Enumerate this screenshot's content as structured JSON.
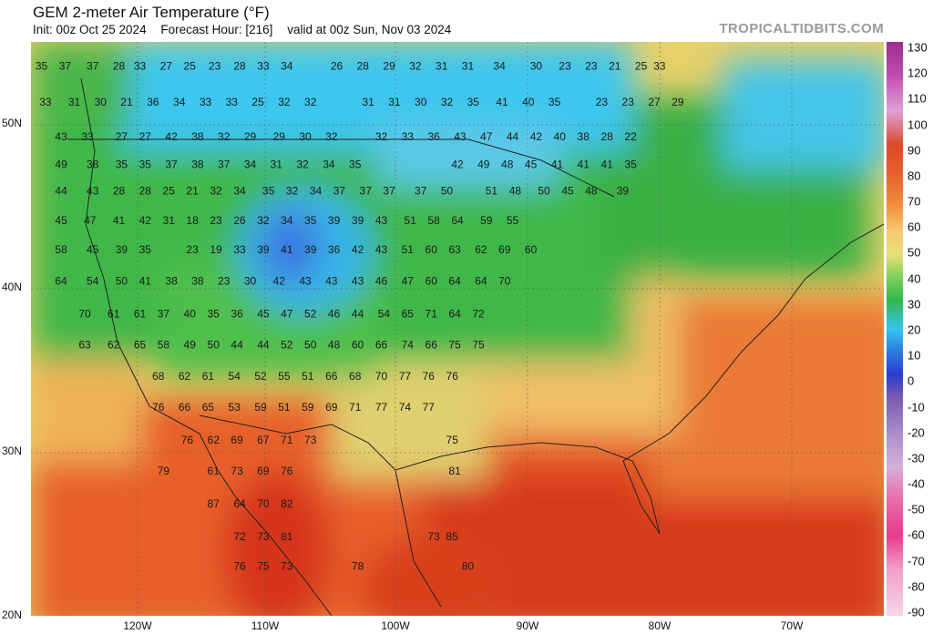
{
  "header": {
    "title": "GEM 2-meter Air Temperature (°F)",
    "init": "Init: 00z Oct 25 2024",
    "forecast_hour": "Forecast Hour: [216]",
    "valid": "valid at 00z Sun, Nov 03 2024",
    "brand": "TROPICALTIDBITS.COM"
  },
  "axes": {
    "lat_labels": [
      "50N",
      "40N",
      "30N",
      "20N"
    ],
    "lon_labels": [
      "120W",
      "110W",
      "100W",
      "90W",
      "80W",
      "70W"
    ]
  },
  "colorbar": {
    "ticks": [
      "130",
      "120",
      "110",
      "100",
      "90",
      "80",
      "70",
      "60",
      "50",
      "40",
      "30",
      "20",
      "10",
      "0",
      "-10",
      "-20",
      "-30",
      "-40",
      "-50",
      "-60",
      "-70",
      "-80",
      "-90"
    ],
    "colors": {
      "cold": "#37c4f0",
      "cool": "#2fb84a",
      "mild": "#f2df83",
      "warm": "#f08a3a",
      "hot": "#db3b1f"
    }
  },
  "temps": [
    {
      "v": "35",
      "lon": -126.5,
      "lat": 53.5
    },
    {
      "v": "37",
      "lon": -124.7,
      "lat": 53.5
    },
    {
      "v": "37",
      "lon": -122.6,
      "lat": 53.5
    },
    {
      "v": "28",
      "lon": -120.6,
      "lat": 53.5
    },
    {
      "v": "33",
      "lon": -119.0,
      "lat": 53.5
    },
    {
      "v": "27",
      "lon": -117.0,
      "lat": 53.5
    },
    {
      "v": "25",
      "lon": -115.2,
      "lat": 53.5
    },
    {
      "v": "23",
      "lon": -113.3,
      "lat": 53.5
    },
    {
      "v": "28",
      "lon": -111.4,
      "lat": 53.5
    },
    {
      "v": "33",
      "lon": -109.6,
      "lat": 53.5
    },
    {
      "v": "34",
      "lon": -107.8,
      "lat": 53.5
    },
    {
      "v": "26",
      "lon": -104.0,
      "lat": 53.5
    },
    {
      "v": "28",
      "lon": -102.0,
      "lat": 53.5
    },
    {
      "v": "29",
      "lon": -100.0,
      "lat": 53.5
    },
    {
      "v": "32",
      "lon": -98.0,
      "lat": 53.5
    },
    {
      "v": "31",
      "lon": -96.0,
      "lat": 53.5
    },
    {
      "v": "31",
      "lon": -94.0,
      "lat": 53.5
    },
    {
      "v": "34",
      "lon": -91.6,
      "lat": 53.5
    },
    {
      "v": "30",
      "lon": -88.8,
      "lat": 53.5
    },
    {
      "v": "23",
      "lon": -86.6,
      "lat": 53.5
    },
    {
      "v": "23",
      "lon": -84.6,
      "lat": 53.5
    },
    {
      "v": "21",
      "lon": -82.8,
      "lat": 53.5
    },
    {
      "v": "25",
      "lon": -80.8,
      "lat": 53.5
    },
    {
      "v": "33",
      "lon": -79.4,
      "lat": 53.5
    },
    {
      "v": "33",
      "lon": -126.2,
      "lat": 51.3
    },
    {
      "v": "31",
      "lon": -124.0,
      "lat": 51.3
    },
    {
      "v": "30",
      "lon": -122.0,
      "lat": 51.3
    },
    {
      "v": "21",
      "lon": -120.0,
      "lat": 51.3
    },
    {
      "v": "36",
      "lon": -118.0,
      "lat": 51.3
    },
    {
      "v": "34",
      "lon": -116.0,
      "lat": 51.3
    },
    {
      "v": "33",
      "lon": -114.0,
      "lat": 51.3
    },
    {
      "v": "33",
      "lon": -112.0,
      "lat": 51.3
    },
    {
      "v": "25",
      "lon": -110.0,
      "lat": 51.3
    },
    {
      "v": "32",
      "lon": -108.0,
      "lat": 51.3
    },
    {
      "v": "32",
      "lon": -106.0,
      "lat": 51.3
    },
    {
      "v": "31",
      "lon": -101.6,
      "lat": 51.3
    },
    {
      "v": "31",
      "lon": -99.6,
      "lat": 51.3
    },
    {
      "v": "30",
      "lon": -97.6,
      "lat": 51.3
    },
    {
      "v": "32",
      "lon": -95.6,
      "lat": 51.3
    },
    {
      "v": "35",
      "lon": -93.6,
      "lat": 51.3
    },
    {
      "v": "41",
      "lon": -91.4,
      "lat": 51.3
    },
    {
      "v": "40",
      "lon": -89.4,
      "lat": 51.3
    },
    {
      "v": "35",
      "lon": -87.4,
      "lat": 51.3
    },
    {
      "v": "23",
      "lon": -83.8,
      "lat": 51.3
    },
    {
      "v": "23",
      "lon": -81.8,
      "lat": 51.3
    },
    {
      "v": "27",
      "lon": -79.8,
      "lat": 51.3
    },
    {
      "v": "29",
      "lon": -78.0,
      "lat": 51.3
    },
    {
      "v": "43",
      "lon": -125.0,
      "lat": 49.2
    },
    {
      "v": "33",
      "lon": -123.0,
      "lat": 49.2
    },
    {
      "v": "27",
      "lon": -120.4,
      "lat": 49.2
    },
    {
      "v": "27",
      "lon": -118.6,
      "lat": 49.2
    },
    {
      "v": "42",
      "lon": -116.6,
      "lat": 49.2
    },
    {
      "v": "38",
      "lon": -114.6,
      "lat": 49.2
    },
    {
      "v": "32",
      "lon": -112.6,
      "lat": 49.2
    },
    {
      "v": "29",
      "lon": -110.6,
      "lat": 49.2
    },
    {
      "v": "29",
      "lon": -108.4,
      "lat": 49.2
    },
    {
      "v": "30",
      "lon": -106.4,
      "lat": 49.2
    },
    {
      "v": "32",
      "lon": -104.4,
      "lat": 49.2
    },
    {
      "v": "32",
      "lon": -100.6,
      "lat": 49.2
    },
    {
      "v": "33",
      "lon": -98.6,
      "lat": 49.2
    },
    {
      "v": "36",
      "lon": -96.6,
      "lat": 49.2
    },
    {
      "v": "43",
      "lon": -94.6,
      "lat": 49.2
    },
    {
      "v": "47",
      "lon": -92.6,
      "lat": 49.2
    },
    {
      "v": "44",
      "lon": -90.6,
      "lat": 49.2
    },
    {
      "v": "42",
      "lon": -88.8,
      "lat": 49.2
    },
    {
      "v": "40",
      "lon": -87.0,
      "lat": 49.2
    },
    {
      "v": "38",
      "lon": -85.2,
      "lat": 49.2
    },
    {
      "v": "28",
      "lon": -83.4,
      "lat": 49.2
    },
    {
      "v": "22",
      "lon": -81.6,
      "lat": 49.2
    },
    {
      "v": "49",
      "lon": -125.0,
      "lat": 47.5
    },
    {
      "v": "38",
      "lon": -122.6,
      "lat": 47.5
    },
    {
      "v": "35",
      "lon": -120.4,
      "lat": 47.5
    },
    {
      "v": "35",
      "lon": -118.6,
      "lat": 47.5
    },
    {
      "v": "37",
      "lon": -116.6,
      "lat": 47.5
    },
    {
      "v": "38",
      "lon": -114.6,
      "lat": 47.5
    },
    {
      "v": "37",
      "lon": -112.6,
      "lat": 47.5
    },
    {
      "v": "34",
      "lon": -110.6,
      "lat": 47.5
    },
    {
      "v": "31",
      "lon": -108.6,
      "lat": 47.5
    },
    {
      "v": "32",
      "lon": -106.6,
      "lat": 47.5
    },
    {
      "v": "34",
      "lon": -104.6,
      "lat": 47.5
    },
    {
      "v": "35",
      "lon": -102.6,
      "lat": 47.5
    },
    {
      "v": "42",
      "lon": -94.8,
      "lat": 47.5
    },
    {
      "v": "49",
      "lon": -92.8,
      "lat": 47.5
    },
    {
      "v": "48",
      "lon": -91.0,
      "lat": 47.5
    },
    {
      "v": "45",
      "lon": -89.2,
      "lat": 47.5
    },
    {
      "v": "41",
      "lon": -87.2,
      "lat": 47.5
    },
    {
      "v": "41",
      "lon": -85.2,
      "lat": 47.5
    },
    {
      "v": "41",
      "lon": -83.4,
      "lat": 47.5
    },
    {
      "v": "35",
      "lon": -81.6,
      "lat": 47.5
    },
    {
      "v": "44",
      "lon": -125.0,
      "lat": 45.9
    },
    {
      "v": "43",
      "lon": -122.6,
      "lat": 45.9
    },
    {
      "v": "28",
      "lon": -120.6,
      "lat": 45.9
    },
    {
      "v": "28",
      "lon": -118.6,
      "lat": 45.9
    },
    {
      "v": "25",
      "lon": -116.8,
      "lat": 45.9
    },
    {
      "v": "21",
      "lon": -115.0,
      "lat": 45.9
    },
    {
      "v": "32",
      "lon": -113.2,
      "lat": 45.9
    },
    {
      "v": "34",
      "lon": -111.4,
      "lat": 45.9
    },
    {
      "v": "35",
      "lon": -109.2,
      "lat": 45.9
    },
    {
      "v": "32",
      "lon": -107.4,
      "lat": 45.9
    },
    {
      "v": "34",
      "lon": -105.6,
      "lat": 45.9
    },
    {
      "v": "37",
      "lon": -103.8,
      "lat": 45.9
    },
    {
      "v": "37",
      "lon": -101.8,
      "lat": 45.9
    },
    {
      "v": "37",
      "lon": -100.0,
      "lat": 45.9
    },
    {
      "v": "37",
      "lon": -97.6,
      "lat": 45.9
    },
    {
      "v": "50",
      "lon": -95.6,
      "lat": 45.9
    },
    {
      "v": "51",
      "lon": -92.2,
      "lat": 45.9
    },
    {
      "v": "48",
      "lon": -90.4,
      "lat": 45.9
    },
    {
      "v": "50",
      "lon": -88.2,
      "lat": 45.9
    },
    {
      "v": "45",
      "lon": -86.4,
      "lat": 45.9
    },
    {
      "v": "48",
      "lon": -84.6,
      "lat": 45.9
    },
    {
      "v": "39",
      "lon": -82.2,
      "lat": 45.9
    },
    {
      "v": "45",
      "lon": -125.0,
      "lat": 44.1
    },
    {
      "v": "47",
      "lon": -122.8,
      "lat": 44.1
    },
    {
      "v": "41",
      "lon": -120.6,
      "lat": 44.1
    },
    {
      "v": "42",
      "lon": -118.6,
      "lat": 44.1
    },
    {
      "v": "31",
      "lon": -116.8,
      "lat": 44.1
    },
    {
      "v": "18",
      "lon": -115.0,
      "lat": 44.1
    },
    {
      "v": "23",
      "lon": -113.2,
      "lat": 44.1
    },
    {
      "v": "26",
      "lon": -111.4,
      "lat": 44.1
    },
    {
      "v": "32",
      "lon": -109.6,
      "lat": 44.1
    },
    {
      "v": "34",
      "lon": -107.8,
      "lat": 44.1
    },
    {
      "v": "35",
      "lon": -106.0,
      "lat": 44.1
    },
    {
      "v": "39",
      "lon": -104.2,
      "lat": 44.1
    },
    {
      "v": "39",
      "lon": -102.4,
      "lat": 44.1
    },
    {
      "v": "43",
      "lon": -100.6,
      "lat": 44.1
    },
    {
      "v": "51",
      "lon": -98.4,
      "lat": 44.1
    },
    {
      "v": "58",
      "lon": -96.6,
      "lat": 44.1
    },
    {
      "v": "64",
      "lon": -94.8,
      "lat": 44.1
    },
    {
      "v": "59",
      "lon": -92.6,
      "lat": 44.1
    },
    {
      "v": "55",
      "lon": -90.6,
      "lat": 44.1
    },
    {
      "v": "58",
      "lon": -125.0,
      "lat": 42.3
    },
    {
      "v": "45",
      "lon": -122.6,
      "lat": 42.3
    },
    {
      "v": "39",
      "lon": -120.4,
      "lat": 42.3
    },
    {
      "v": "35",
      "lon": -118.6,
      "lat": 42.3
    },
    {
      "v": "23",
      "lon": -115.0,
      "lat": 42.3
    },
    {
      "v": "19",
      "lon": -113.2,
      "lat": 42.3
    },
    {
      "v": "33",
      "lon": -111.4,
      "lat": 42.3
    },
    {
      "v": "39",
      "lon": -109.6,
      "lat": 42.3
    },
    {
      "v": "41",
      "lon": -107.8,
      "lat": 42.3
    },
    {
      "v": "39",
      "lon": -106.0,
      "lat": 42.3
    },
    {
      "v": "36",
      "lon": -104.2,
      "lat": 42.3
    },
    {
      "v": "42",
      "lon": -102.4,
      "lat": 42.3
    },
    {
      "v": "43",
      "lon": -100.6,
      "lat": 42.3
    },
    {
      "v": "51",
      "lon": -98.6,
      "lat": 42.3
    },
    {
      "v": "60",
      "lon": -96.8,
      "lat": 42.3
    },
    {
      "v": "63",
      "lon": -95.0,
      "lat": 42.3
    },
    {
      "v": "62",
      "lon": -93.0,
      "lat": 42.3
    },
    {
      "v": "69",
      "lon": -91.2,
      "lat": 42.3
    },
    {
      "v": "60",
      "lon": -89.2,
      "lat": 42.3
    },
    {
      "v": "64",
      "lon": -125.0,
      "lat": 40.4
    },
    {
      "v": "54",
      "lon": -122.6,
      "lat": 40.4
    },
    {
      "v": "50",
      "lon": -120.4,
      "lat": 40.4
    },
    {
      "v": "41",
      "lon": -118.6,
      "lat": 40.4
    },
    {
      "v": "38",
      "lon": -116.6,
      "lat": 40.4
    },
    {
      "v": "38",
      "lon": -114.6,
      "lat": 40.4
    },
    {
      "v": "23",
      "lon": -112.6,
      "lat": 40.4
    },
    {
      "v": "30",
      "lon": -110.6,
      "lat": 40.4
    },
    {
      "v": "42",
      "lon": -108.4,
      "lat": 40.4
    },
    {
      "v": "43",
      "lon": -106.4,
      "lat": 40.4
    },
    {
      "v": "43",
      "lon": -104.4,
      "lat": 40.4
    },
    {
      "v": "43",
      "lon": -102.4,
      "lat": 40.4
    },
    {
      "v": "46",
      "lon": -100.6,
      "lat": 40.4
    },
    {
      "v": "47",
      "lon": -98.6,
      "lat": 40.4
    },
    {
      "v": "60",
      "lon": -96.8,
      "lat": 40.4
    },
    {
      "v": "64",
      "lon": -95.0,
      "lat": 40.4
    },
    {
      "v": "64",
      "lon": -93.0,
      "lat": 40.4
    },
    {
      "v": "70",
      "lon": -91.2,
      "lat": 40.4
    },
    {
      "v": "70",
      "lon": -123.2,
      "lat": 38.4
    },
    {
      "v": "61",
      "lon": -121.0,
      "lat": 38.4
    },
    {
      "v": "61",
      "lon": -119.0,
      "lat": 38.4
    },
    {
      "v": "37",
      "lon": -117.2,
      "lat": 38.4
    },
    {
      "v": "40",
      "lon": -115.2,
      "lat": 38.4
    },
    {
      "v": "35",
      "lon": -113.4,
      "lat": 38.4
    },
    {
      "v": "36",
      "lon": -111.6,
      "lat": 38.4
    },
    {
      "v": "45",
      "lon": -109.6,
      "lat": 38.4
    },
    {
      "v": "47",
      "lon": -107.8,
      "lat": 38.4
    },
    {
      "v": "52",
      "lon": -106.0,
      "lat": 38.4
    },
    {
      "v": "46",
      "lon": -104.2,
      "lat": 38.4
    },
    {
      "v": "44",
      "lon": -102.4,
      "lat": 38.4
    },
    {
      "v": "54",
      "lon": -100.4,
      "lat": 38.4
    },
    {
      "v": "65",
      "lon": -98.6,
      "lat": 38.4
    },
    {
      "v": "71",
      "lon": -96.8,
      "lat": 38.4
    },
    {
      "v": "64",
      "lon": -95.0,
      "lat": 38.4
    },
    {
      "v": "72",
      "lon": -93.2,
      "lat": 38.4
    },
    {
      "v": "63",
      "lon": -123.2,
      "lat": 36.5
    },
    {
      "v": "62",
      "lon": -121.0,
      "lat": 36.5
    },
    {
      "v": "65",
      "lon": -119.0,
      "lat": 36.5
    },
    {
      "v": "58",
      "lon": -117.2,
      "lat": 36.5
    },
    {
      "v": "49",
      "lon": -115.2,
      "lat": 36.5
    },
    {
      "v": "50",
      "lon": -113.4,
      "lat": 36.5
    },
    {
      "v": "44",
      "lon": -111.6,
      "lat": 36.5
    },
    {
      "v": "44",
      "lon": -109.6,
      "lat": 36.5
    },
    {
      "v": "52",
      "lon": -107.8,
      "lat": 36.5
    },
    {
      "v": "50",
      "lon": -106.0,
      "lat": 36.5
    },
    {
      "v": "48",
      "lon": -104.2,
      "lat": 36.5
    },
    {
      "v": "60",
      "lon": -102.4,
      "lat": 36.5
    },
    {
      "v": "66",
      "lon": -100.6,
      "lat": 36.5
    },
    {
      "v": "74",
      "lon": -98.6,
      "lat": 36.5
    },
    {
      "v": "66",
      "lon": -96.8,
      "lat": 36.5
    },
    {
      "v": "75",
      "lon": -95.0,
      "lat": 36.5
    },
    {
      "v": "75",
      "lon": -93.2,
      "lat": 36.5
    },
    {
      "v": "68",
      "lon": -117.6,
      "lat": 34.6
    },
    {
      "v": "62",
      "lon": -115.6,
      "lat": 34.6
    },
    {
      "v": "61",
      "lon": -113.8,
      "lat": 34.6
    },
    {
      "v": "54",
      "lon": -111.8,
      "lat": 34.6
    },
    {
      "v": "52",
      "lon": -109.8,
      "lat": 34.6
    },
    {
      "v": "55",
      "lon": -108.0,
      "lat": 34.6
    },
    {
      "v": "51",
      "lon": -106.2,
      "lat": 34.6
    },
    {
      "v": "66",
      "lon": -104.4,
      "lat": 34.6
    },
    {
      "v": "68",
      "lon": -102.6,
      "lat": 34.6
    },
    {
      "v": "70",
      "lon": -100.6,
      "lat": 34.6
    },
    {
      "v": "77",
      "lon": -98.8,
      "lat": 34.6
    },
    {
      "v": "76",
      "lon": -97.0,
      "lat": 34.6
    },
    {
      "v": "76",
      "lon": -95.2,
      "lat": 34.6
    },
    {
      "v": "76",
      "lon": -117.6,
      "lat": 32.7
    },
    {
      "v": "66",
      "lon": -115.6,
      "lat": 32.7
    },
    {
      "v": "65",
      "lon": -113.8,
      "lat": 32.7
    },
    {
      "v": "53",
      "lon": -111.8,
      "lat": 32.7
    },
    {
      "v": "59",
      "lon": -109.8,
      "lat": 32.7
    },
    {
      "v": "51",
      "lon": -108.0,
      "lat": 32.7
    },
    {
      "v": "59",
      "lon": -106.2,
      "lat": 32.7
    },
    {
      "v": "69",
      "lon": -104.4,
      "lat": 32.7
    },
    {
      "v": "71",
      "lon": -102.6,
      "lat": 32.7
    },
    {
      "v": "77",
      "lon": -100.6,
      "lat": 32.7
    },
    {
      "v": "74",
      "lon": -98.8,
      "lat": 32.7
    },
    {
      "v": "77",
      "lon": -97.0,
      "lat": 32.7
    },
    {
      "v": "76",
      "lon": -115.4,
      "lat": 30.7
    },
    {
      "v": "62",
      "lon": -113.4,
      "lat": 30.7
    },
    {
      "v": "69",
      "lon": -111.6,
      "lat": 30.7
    },
    {
      "v": "67",
      "lon": -109.6,
      "lat": 30.7
    },
    {
      "v": "71",
      "lon": -107.8,
      "lat": 30.7
    },
    {
      "v": "73",
      "lon": -106.0,
      "lat": 30.7
    },
    {
      "v": "75",
      "lon": -95.2,
      "lat": 30.7
    },
    {
      "v": "79",
      "lon": -117.2,
      "lat": 28.8
    },
    {
      "v": "61",
      "lon": -113.4,
      "lat": 28.8
    },
    {
      "v": "73",
      "lon": -111.6,
      "lat": 28.8
    },
    {
      "v": "69",
      "lon": -109.6,
      "lat": 28.8
    },
    {
      "v": "76",
      "lon": -107.8,
      "lat": 28.8
    },
    {
      "v": "81",
      "lon": -95.0,
      "lat": 28.8
    },
    {
      "v": "87",
      "lon": -113.4,
      "lat": 26.8
    },
    {
      "v": "64",
      "lon": -111.4,
      "lat": 26.8
    },
    {
      "v": "70",
      "lon": -109.6,
      "lat": 26.8
    },
    {
      "v": "82",
      "lon": -107.8,
      "lat": 26.8
    },
    {
      "v": "72",
      "lon": -111.4,
      "lat": 24.8
    },
    {
      "v": "73",
      "lon": -109.6,
      "lat": 24.8
    },
    {
      "v": "81",
      "lon": -107.8,
      "lat": 24.8
    },
    {
      "v": "73",
      "lon": -96.6,
      "lat": 24.8
    },
    {
      "v": "85",
      "lon": -95.2,
      "lat": 24.8
    },
    {
      "v": "76",
      "lon": -111.4,
      "lat": 23.0
    },
    {
      "v": "75",
      "lon": -109.6,
      "lat": 23.0
    },
    {
      "v": "73",
      "lon": -107.8,
      "lat": 23.0
    },
    {
      "v": "78",
      "lon": -102.4,
      "lat": 23.0
    },
    {
      "v": "80",
      "lon": -94.0,
      "lat": 23.0
    }
  ]
}
